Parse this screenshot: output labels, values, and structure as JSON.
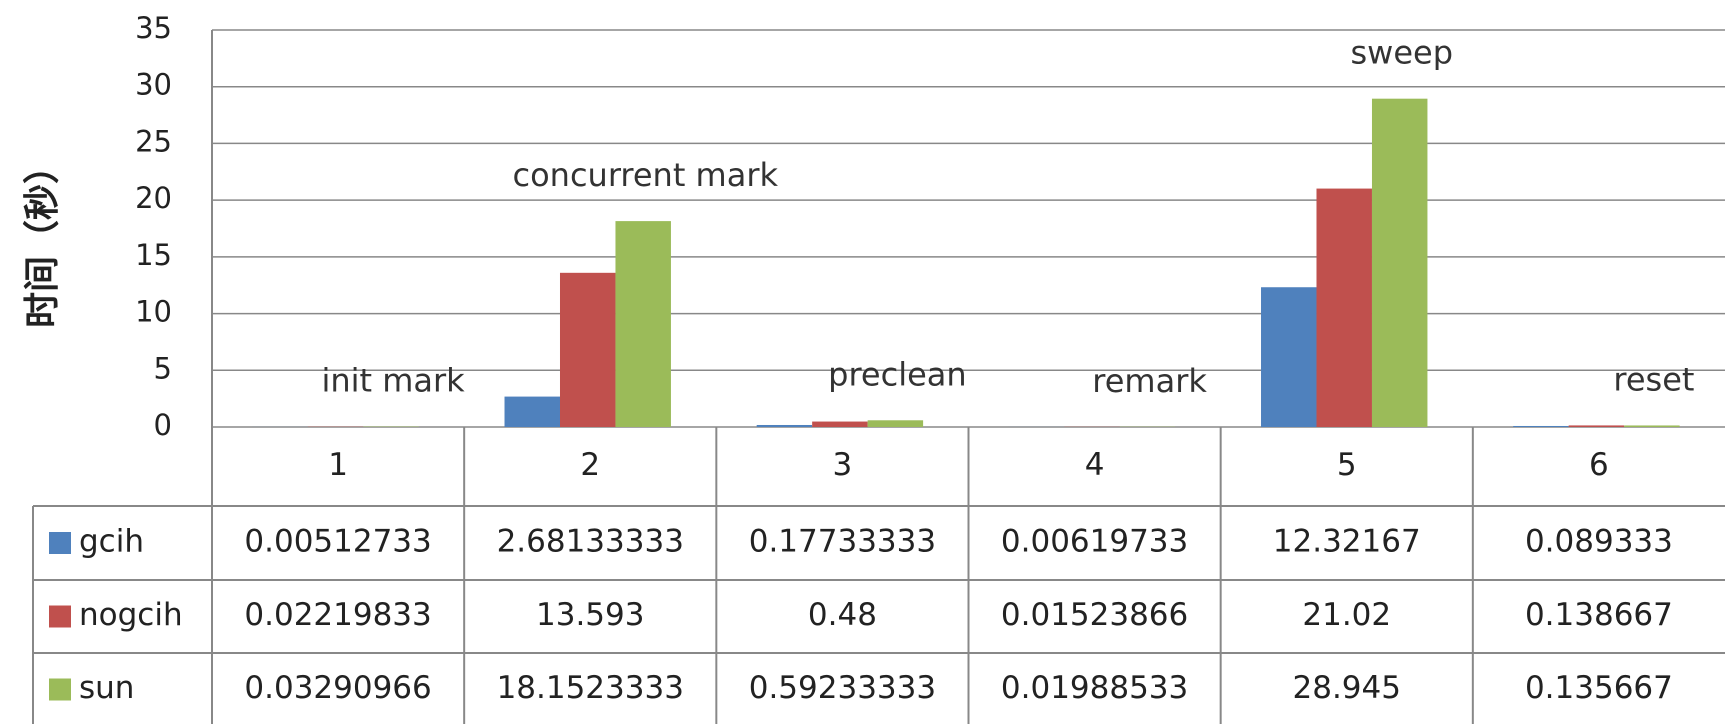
{
  "chart_data": {
    "type": "bar",
    "y_label": "时间（秒）",
    "categories": [
      "1",
      "2",
      "3",
      "4",
      "5",
      "6"
    ],
    "annotations": [
      "init mark",
      "concurrent mark",
      "preclean",
      "remark",
      "sweep",
      "reset"
    ],
    "series": [
      {
        "name": "gcih",
        "color": "#4f81bd",
        "values": [
          0.00512733,
          2.68133333,
          0.17733333,
          0.00619733,
          12.32167,
          0.089333
        ]
      },
      {
        "name": "nogcih",
        "color": "#c0504d",
        "values": [
          0.02219833,
          13.593,
          0.48,
          0.01523866,
          21.02,
          0.138667
        ]
      },
      {
        "name": "sun",
        "color": "#9bbb59",
        "values": [
          0.03290966,
          18.1523333,
          0.59233333,
          0.01988533,
          28.945,
          0.135667
        ]
      }
    ],
    "ylim": [
      0,
      35
    ],
    "yticks": [
      0,
      5,
      10,
      15,
      20,
      25,
      30,
      35
    ],
    "grid": true
  }
}
